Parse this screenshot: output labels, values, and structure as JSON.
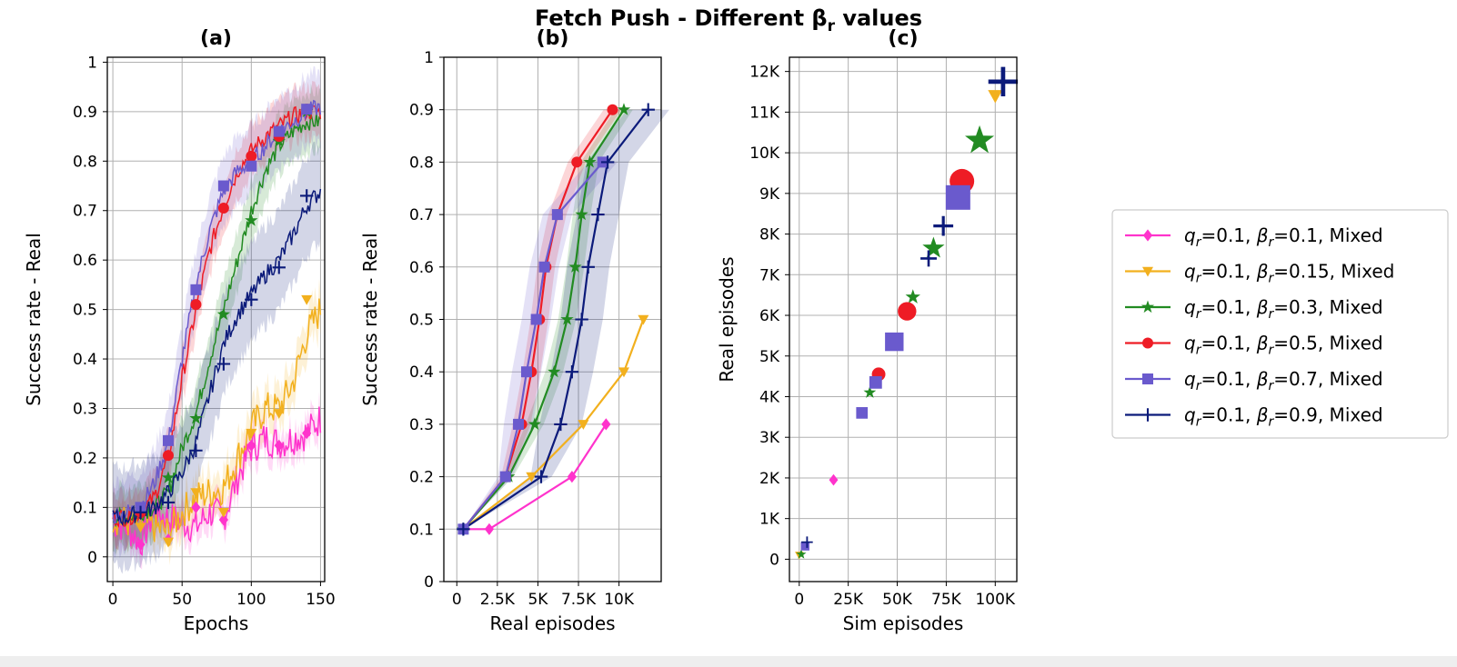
{
  "figure": {
    "title_main": "Fetch Push - Different β",
    "title_sub": "r",
    "title_tail": " values"
  },
  "legend": {
    "entries": [
      {
        "q": "q",
        "qsub": "r",
        "qval": "=0.1, ",
        "b": "β",
        "bsub": "r",
        "bval": "=0.1, Mixed",
        "color": "#ff33cc",
        "marker": "diamond"
      },
      {
        "q": "q",
        "qsub": "r",
        "qval": "=0.1, ",
        "b": "β",
        "bsub": "r",
        "bval": "=0.15, Mixed",
        "color": "#f2b01e",
        "marker": "triangle-down"
      },
      {
        "q": "q",
        "qsub": "r",
        "qval": "=0.1, ",
        "b": "β",
        "bsub": "r",
        "bval": "=0.3, Mixed",
        "color": "#228b22",
        "marker": "star"
      },
      {
        "q": "q",
        "qsub": "r",
        "qval": "=0.1, ",
        "b": "β",
        "bsub": "r",
        "bval": "=0.5, Mixed",
        "color": "#ee1c25",
        "marker": "circle"
      },
      {
        "q": "q",
        "qsub": "r",
        "qval": "=0.1, ",
        "b": "β",
        "bsub": "r",
        "bval": "=0.7, Mixed",
        "color": "#6a5acd",
        "marker": "square"
      },
      {
        "q": "q",
        "qsub": "r",
        "qval": "=0.1, ",
        "b": "β",
        "bsub": "r",
        "bval": "=0.9, Mixed",
        "color": "#0b1a7a",
        "marker": "plus"
      }
    ]
  },
  "chart_data": [
    {
      "id": "a",
      "type": "line",
      "title": "(a)",
      "xlabel": "Epochs",
      "ylabel": "Success rate - Real",
      "xlim": [
        -4,
        153
      ],
      "ylim": [
        -0.05,
        1.01
      ],
      "xticks": [
        0,
        50,
        100,
        150
      ],
      "xtick_labels": [
        "0",
        "50",
        "100",
        "150"
      ],
      "yticks": [
        0,
        0.1,
        0.2,
        0.3,
        0.4,
        0.5,
        0.6,
        0.7,
        0.8,
        0.9,
        1
      ],
      "ytick_labels": [
        "0",
        "0.1",
        "0.2",
        "0.3",
        "0.4",
        "0.5",
        "0.6",
        "0.7",
        "0.8",
        "0.9",
        "1"
      ],
      "series": [
        {
          "name": "β_r=0.1",
          "color": "#ff33cc",
          "marker": "diamond",
          "x": [
            0,
            10,
            20,
            30,
            40,
            50,
            60,
            70,
            80,
            90,
            100,
            110,
            120,
            130,
            140,
            150
          ],
          "y": [
            0.07,
            0.06,
            0.03,
            0.09,
            0.08,
            0.07,
            0.06,
            0.09,
            0.08,
            0.16,
            0.22,
            0.24,
            0.23,
            0.24,
            0.25,
            0.28
          ],
          "band": 0.03,
          "marker_x": [
            20,
            40,
            60,
            80,
            100,
            120,
            140
          ],
          "marker_y": [
            0.025,
            0.035,
            0.1,
            0.075,
            0.225,
            0.225,
            0.25
          ]
        },
        {
          "name": "β_r=0.15",
          "color": "#f2b01e",
          "marker": "triangle-down",
          "x": [
            0,
            10,
            20,
            30,
            40,
            50,
            60,
            70,
            80,
            90,
            100,
            110,
            120,
            130,
            140,
            150
          ],
          "y": [
            0.08,
            0.07,
            0.07,
            0.06,
            0.05,
            0.09,
            0.12,
            0.13,
            0.14,
            0.2,
            0.26,
            0.3,
            0.3,
            0.35,
            0.45,
            0.5
          ],
          "band": 0.04,
          "marker_x": [
            20,
            40,
            60,
            80,
            100,
            120,
            140
          ],
          "marker_y": [
            0.06,
            0.03,
            0.13,
            0.09,
            0.25,
            0.29,
            0.52
          ]
        },
        {
          "name": "β_r=0.3",
          "color": "#228b22",
          "marker": "star",
          "x": [
            0,
            10,
            20,
            30,
            40,
            50,
            60,
            70,
            80,
            90,
            100,
            110,
            120,
            130,
            140,
            150
          ],
          "y": [
            0.08,
            0.08,
            0.09,
            0.1,
            0.13,
            0.22,
            0.29,
            0.4,
            0.5,
            0.6,
            0.7,
            0.78,
            0.83,
            0.86,
            0.88,
            0.88
          ],
          "band": 0.06,
          "marker_x": [
            20,
            40,
            60,
            80,
            100,
            120,
            140
          ],
          "marker_y": [
            0.09,
            0.16,
            0.28,
            0.49,
            0.68,
            0.84,
            0.9
          ]
        },
        {
          "name": "β_r=0.5",
          "color": "#ee1c25",
          "marker": "circle",
          "x": [
            0,
            10,
            20,
            30,
            40,
            50,
            60,
            70,
            80,
            90,
            100,
            110,
            120,
            130,
            140,
            150
          ],
          "y": [
            0.08,
            0.08,
            0.09,
            0.12,
            0.2,
            0.36,
            0.5,
            0.62,
            0.71,
            0.78,
            0.82,
            0.85,
            0.87,
            0.89,
            0.9,
            0.9
          ],
          "band": 0.05,
          "marker_x": [
            20,
            40,
            60,
            80,
            100,
            120,
            140
          ],
          "marker_y": [
            0.09,
            0.205,
            0.51,
            0.705,
            0.81,
            0.85,
            0.905
          ]
        },
        {
          "name": "β_r=0.7",
          "color": "#6a5acd",
          "marker": "square",
          "x": [
            0,
            10,
            20,
            30,
            40,
            50,
            60,
            70,
            80,
            90,
            100,
            110,
            120,
            130,
            140,
            150
          ],
          "y": [
            0.08,
            0.09,
            0.1,
            0.15,
            0.23,
            0.4,
            0.55,
            0.66,
            0.74,
            0.78,
            0.8,
            0.83,
            0.86,
            0.88,
            0.9,
            0.91
          ],
          "band": 0.07,
          "marker_x": [
            20,
            40,
            60,
            80,
            100,
            120,
            140
          ],
          "marker_y": [
            0.1,
            0.235,
            0.54,
            0.75,
            0.79,
            0.86,
            0.905
          ]
        },
        {
          "name": "β_r=0.9",
          "color": "#0b1a7a",
          "marker": "plus",
          "x": [
            0,
            10,
            20,
            30,
            40,
            50,
            60,
            70,
            80,
            90,
            100,
            110,
            120,
            130,
            140,
            150
          ],
          "y": [
            0.08,
            0.08,
            0.09,
            0.1,
            0.13,
            0.17,
            0.23,
            0.33,
            0.43,
            0.49,
            0.53,
            0.57,
            0.6,
            0.65,
            0.71,
            0.74
          ],
          "band": 0.1,
          "marker_x": [
            20,
            40,
            60,
            80,
            100,
            120,
            140
          ],
          "marker_y": [
            0.09,
            0.11,
            0.215,
            0.39,
            0.52,
            0.585,
            0.73
          ]
        }
      ]
    },
    {
      "id": "b",
      "type": "line",
      "title": "(b)",
      "xlabel": "Real episodes",
      "ylabel": "Success rate - Real",
      "xlim": [
        -800,
        12600
      ],
      "ylim": [
        0,
        1
      ],
      "xticks": [
        0,
        2500,
        5000,
        7500,
        10000
      ],
      "xtick_labels": [
        "0",
        "2.5K",
        "5K",
        "7.5K",
        "10K"
      ],
      "yticks": [
        0,
        0.1,
        0.2,
        0.3,
        0.4,
        0.5,
        0.6,
        0.7,
        0.8,
        0.9,
        1
      ],
      "ytick_labels": [
        "0",
        "0.1",
        "0.2",
        "0.3",
        "0.4",
        "0.5",
        "0.6",
        "0.7",
        "0.8",
        "0.9",
        "1"
      ],
      "series": [
        {
          "name": "β_r=0.1",
          "color": "#ff33cc",
          "marker": "diamond",
          "x": [
            400,
            2000,
            7100,
            9200
          ],
          "y": [
            0.1,
            0.1,
            0.2,
            0.3
          ]
        },
        {
          "name": "β_r=0.15",
          "color": "#f2b01e",
          "marker": "triangle-down",
          "x": [
            400,
            4600,
            7800,
            10300,
            11500
          ],
          "y": [
            0.1,
            0.2,
            0.3,
            0.4,
            0.5
          ]
        },
        {
          "name": "β_r=0.3",
          "color": "#228b22",
          "marker": "star",
          "x": [
            400,
            3200,
            4800,
            6000,
            6800,
            7300,
            7700,
            8200,
            10300
          ],
          "y": [
            0.1,
            0.2,
            0.3,
            0.4,
            0.5,
            0.6,
            0.7,
            0.8,
            0.9
          ],
          "band_lo": [
            0.1,
            0.18,
            0.27,
            0.34,
            0.44,
            0.54,
            0.64,
            0.74,
            0.88
          ],
          "band_hi": [
            0.1,
            0.22,
            0.33,
            0.46,
            0.56,
            0.66,
            0.76,
            0.86,
            0.92
          ]
        },
        {
          "name": "β_r=0.5",
          "color": "#ee1c25",
          "marker": "circle",
          "x": [
            400,
            3000,
            4000,
            4600,
            5100,
            5500,
            6200,
            7400,
            9600
          ],
          "y": [
            0.1,
            0.2,
            0.3,
            0.4,
            0.5,
            0.6,
            0.7,
            0.8,
            0.9
          ],
          "band_lo": [
            0.1,
            0.18,
            0.26,
            0.36,
            0.45,
            0.55,
            0.65,
            0.76,
            0.88
          ],
          "band_hi": [
            0.1,
            0.22,
            0.34,
            0.44,
            0.55,
            0.65,
            0.75,
            0.84,
            0.92
          ]
        },
        {
          "name": "β_r=0.7",
          "color": "#6a5acd",
          "marker": "square",
          "x": [
            400,
            3000,
            3800,
            4300,
            4900,
            5400,
            6200,
            9000
          ],
          "y": [
            0.1,
            0.2,
            0.3,
            0.4,
            0.5,
            0.6,
            0.7,
            0.8
          ],
          "band_lo": [
            0.1,
            0.16,
            0.24,
            0.32,
            0.42,
            0.52,
            0.62,
            0.74
          ],
          "band_hi": [
            0.1,
            0.24,
            0.36,
            0.48,
            0.58,
            0.68,
            0.78,
            0.86
          ]
        },
        {
          "name": "β_r=0.9",
          "color": "#0b1a7a",
          "marker": "plus",
          "x": [
            400,
            5200,
            6400,
            7100,
            7700,
            8100,
            8700,
            9300,
            11800
          ],
          "y": [
            0.1,
            0.2,
            0.3,
            0.4,
            0.5,
            0.6,
            0.7,
            0.8,
            0.9
          ],
          "band_lo": [
            0.1,
            0.14,
            0.22,
            0.3,
            0.38,
            0.48,
            0.58,
            0.68,
            0.82
          ],
          "band_hi": [
            0.1,
            0.26,
            0.38,
            0.5,
            0.62,
            0.72,
            0.82,
            0.9,
            0.92
          ]
        }
      ]
    },
    {
      "id": "c",
      "type": "scatter",
      "title": "(c)",
      "xlabel": "Sim episodes",
      "ylabel": "Real episodes",
      "xlim": [
        -5000,
        111000
      ],
      "ylim": [
        -550,
        12350
      ],
      "xticks": [
        0,
        25000,
        50000,
        75000,
        100000
      ],
      "xtick_labels": [
        "0",
        "25K",
        "50K",
        "75K",
        "100K"
      ],
      "yticks": [
        0,
        1000,
        2000,
        3000,
        4000,
        5000,
        6000,
        7000,
        8000,
        9000,
        10000,
        11000,
        12000
      ],
      "ytick_labels": [
        "0",
        "1K",
        "2K",
        "3K",
        "4K",
        "5K",
        "6K",
        "7K",
        "8K",
        "9K",
        "10K",
        "11K",
        "12K"
      ],
      "series": [
        {
          "name": "β_r=0.1",
          "color": "#ff33cc",
          "marker": "diamond",
          "points": [
            [
              17500,
              1950,
              0.3
            ]
          ]
        },
        {
          "name": "β_r=0.15",
          "color": "#f2b01e",
          "marker": "triangle-down",
          "points": [
            [
              0,
              100,
              0.2
            ],
            [
              100000,
              11400,
              0.5
            ]
          ]
        },
        {
          "name": "β_r=0.3",
          "color": "#228b22",
          "marker": "star",
          "points": [
            [
              1000,
              120,
              0.2
            ],
            [
              36000,
              4100,
              0.3
            ],
            [
              58000,
              6450,
              0.4
            ],
            [
              68500,
              7650,
              0.7
            ],
            [
              92000,
              10300,
              1.0
            ]
          ]
        },
        {
          "name": "β_r=0.5",
          "color": "#ee1c25",
          "marker": "circle",
          "points": [
            [
              40500,
              4550,
              0.45
            ],
            [
              55000,
              6100,
              0.7
            ],
            [
              83000,
              9300,
              1.0
            ]
          ]
        },
        {
          "name": "β_r=0.7",
          "color": "#6a5acd",
          "marker": "square",
          "points": [
            [
              3000,
              320,
              0.2
            ],
            [
              32000,
              3600,
              0.35
            ],
            [
              39000,
              4350,
              0.4
            ],
            [
              48500,
              5350,
              0.7
            ],
            [
              81000,
              8900,
              1.0
            ]
          ]
        },
        {
          "name": "β_r=0.9",
          "color": "#0b1a7a",
          "marker": "plus",
          "points": [
            [
              4000,
              420,
              0.25
            ],
            [
              66000,
              7400,
              0.45
            ],
            [
              73500,
              8200,
              0.6
            ],
            [
              104000,
              11750,
              1.0
            ]
          ]
        }
      ]
    }
  ]
}
